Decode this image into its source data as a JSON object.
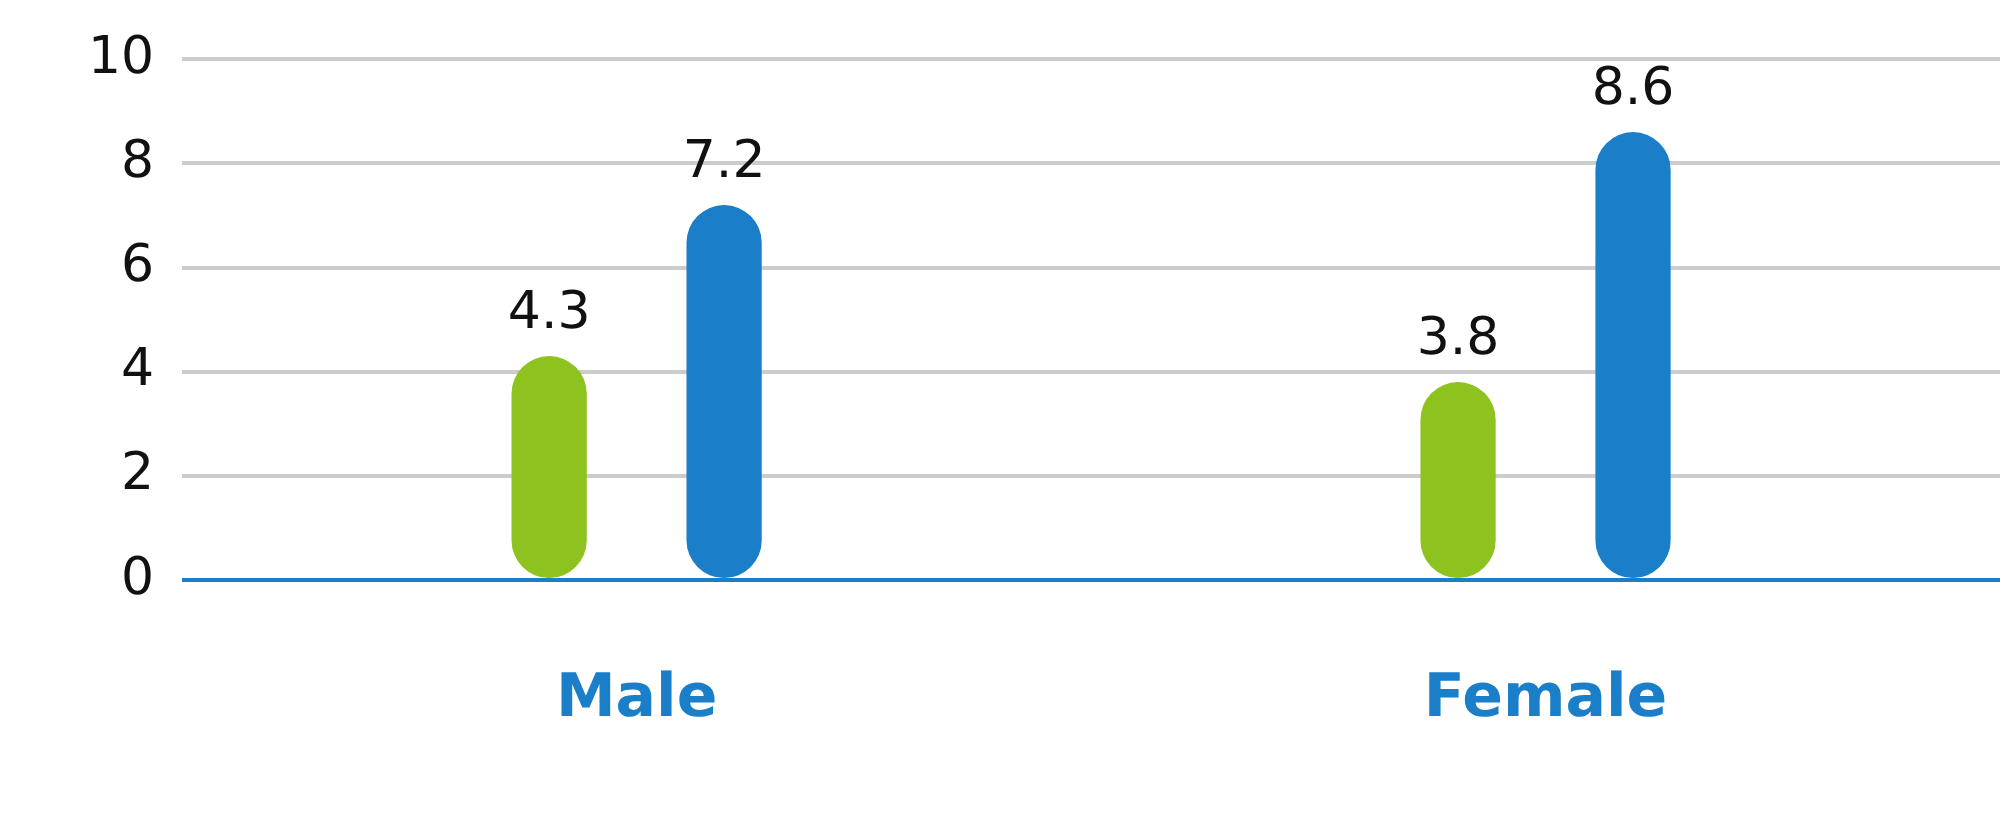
{
  "chart_data": {
    "type": "bar",
    "categories": [
      "Male",
      "Female"
    ],
    "series": [
      {
        "color": "#8dc21f",
        "values": [
          4.3,
          3.8
        ]
      },
      {
        "color": "#1a7fc8",
        "values": [
          7.2,
          8.6
        ]
      }
    ],
    "ylim": [
      0,
      10
    ],
    "yticks": [
      0,
      2,
      4,
      6,
      8,
      10
    ],
    "grid": "y",
    "legend": false,
    "data_labels": true
  }
}
